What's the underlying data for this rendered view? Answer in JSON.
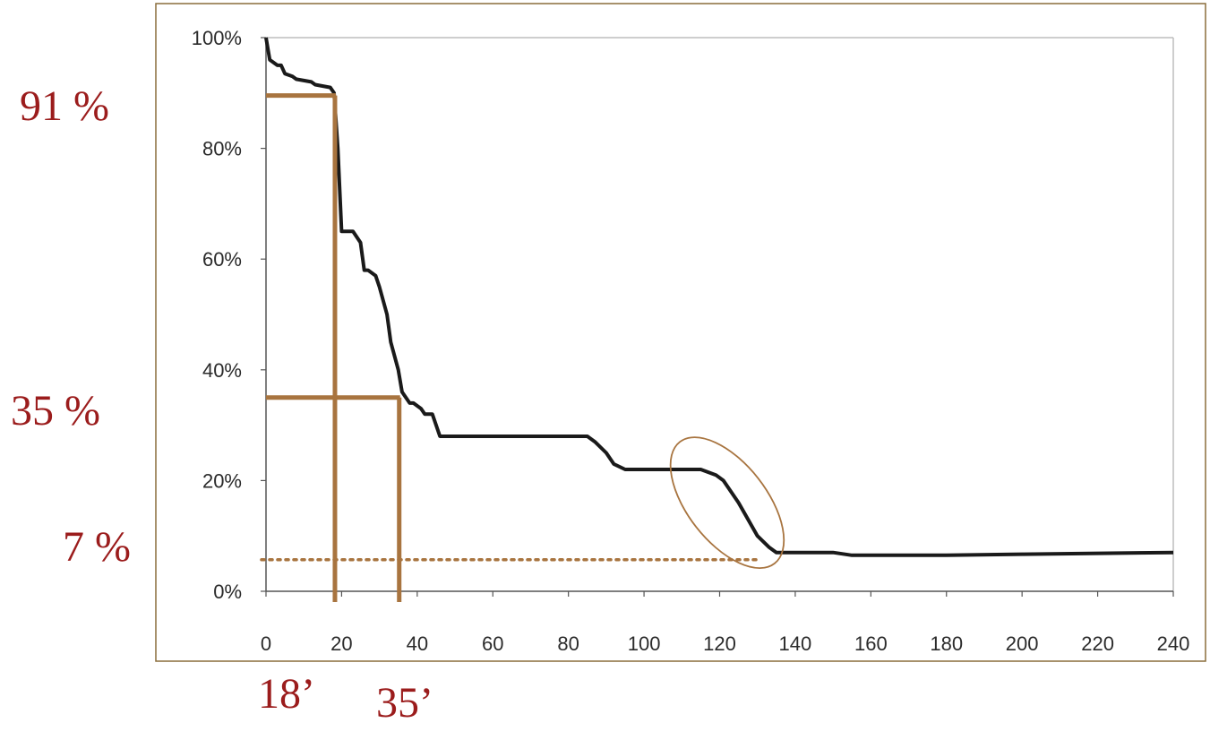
{
  "colors": {
    "annotation_text": "#9b1c1c",
    "marker": "#a8743f",
    "curve": "#1a1a1a",
    "frame": "#8a6d3b",
    "axis": "#555555"
  },
  "chart_data": {
    "type": "line",
    "title": "",
    "xlabel": "",
    "ylabel": "",
    "xlim": [
      0,
      240
    ],
    "ylim": [
      0,
      100
    ],
    "x_ticks": [
      "0",
      "20",
      "40",
      "60",
      "80",
      "100",
      "120",
      "140",
      "160",
      "180",
      "200",
      "220",
      "240"
    ],
    "y_ticks": [
      "0%",
      "20%",
      "40%",
      "60%",
      "80%",
      "100%"
    ],
    "grid": false,
    "series": [
      {
        "x": [
          0,
          0.5,
          1,
          3,
          4,
          5,
          7,
          8,
          12,
          13,
          17,
          18,
          19,
          20,
          20.5,
          21,
          23,
          25,
          26,
          27,
          29,
          30,
          32,
          33,
          35,
          36,
          38,
          39,
          41,
          42,
          44,
          46,
          85,
          87,
          90,
          92,
          95,
          110,
          115,
          119,
          121,
          125,
          130,
          133,
          135,
          140,
          150,
          155,
          160,
          180,
          200,
          240
        ],
        "y": [
          100,
          98,
          96,
          95,
          95,
          93.5,
          93,
          92.5,
          92,
          91.5,
          91,
          90,
          80,
          65,
          65,
          65,
          65,
          63,
          58,
          58,
          57,
          55,
          50,
          45,
          40,
          36,
          34,
          34,
          33,
          32,
          32,
          28,
          28,
          27,
          25,
          23,
          22,
          22,
          22,
          21,
          20,
          16,
          10,
          8,
          7,
          7,
          7,
          6.5,
          6.5,
          6.5,
          6.7,
          7
        ]
      }
    ],
    "markers": {
      "h_levels": [
        91,
        35
      ],
      "v_levels": [
        18,
        35
      ],
      "dotted_level": 7,
      "ellipse_center": [
        122,
        16
      ]
    },
    "annotations": {
      "y91": "91 %",
      "y35": "35 %",
      "y7": "7 %",
      "x18": "18’",
      "x35": "35’"
    }
  }
}
